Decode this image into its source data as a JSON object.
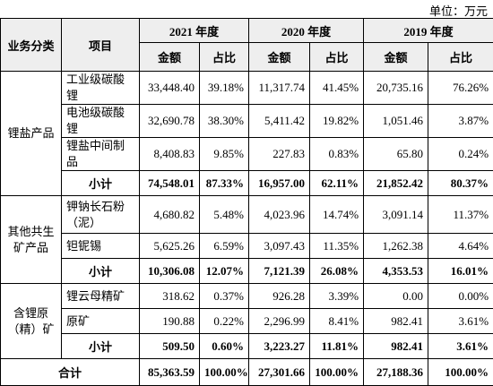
{
  "unit": "单位：万元",
  "table": {
    "header": {
      "category": "业务分类",
      "item": "项目",
      "years": [
        "2021 年度",
        "2020 年度",
        "2019 年度"
      ],
      "subheaders": [
        "金额",
        "占比",
        "金额",
        "占比",
        "金额",
        "占比"
      ]
    },
    "groups": [
      {
        "name": "锂盐产品",
        "rows": [
          [
            "工业级碳酸锂",
            "33,448.40",
            "39.18%",
            "11,317.74",
            "41.45%",
            "20,735.16",
            "76.26%"
          ],
          [
            "电池级碳酸锂",
            "32,690.78",
            "38.30%",
            "5,411.42",
            "19.82%",
            "1,051.46",
            "3.87%"
          ],
          [
            "锂盐中间制品",
            "8,408.83",
            "9.85%",
            "227.83",
            "0.83%",
            "65.80",
            "0.24%"
          ],
          [
            "小计",
            "74,548.01",
            "87.33%",
            "16,957.00",
            "62.11%",
            "21,852.42",
            "80.37%"
          ]
        ]
      },
      {
        "name": "其他共生矿产品",
        "rows": [
          [
            "钾钠长石粉（泥）",
            "4,680.82",
            "5.48%",
            "4,023.96",
            "14.74%",
            "3,091.14",
            "11.37%"
          ],
          [
            "钽铌锡",
            "5,625.26",
            "6.59%",
            "3,097.43",
            "11.35%",
            "1,262.38",
            "4.64%"
          ],
          [
            "小计",
            "10,306.08",
            "12.07%",
            "7,121.39",
            "26.08%",
            "4,353.53",
            "16.01%"
          ]
        ]
      },
      {
        "name": "含锂原（精）矿",
        "rows": [
          [
            "锂云母精矿",
            "318.62",
            "0.37%",
            "926.28",
            "3.39%",
            "0.00",
            "0.00%"
          ],
          [
            "原矿",
            "190.88",
            "0.22%",
            "2,296.99",
            "8.41%",
            "982.41",
            "3.61%"
          ],
          [
            "小计",
            "509.50",
            "0.60%",
            "3,223.27",
            "11.81%",
            "982.41",
            "3.61%"
          ]
        ]
      }
    ],
    "total": [
      "合计",
      "85,363.59",
      "100.00%",
      "27,301.66",
      "100.00%",
      "27,188.36",
      "100.00%"
    ]
  }
}
